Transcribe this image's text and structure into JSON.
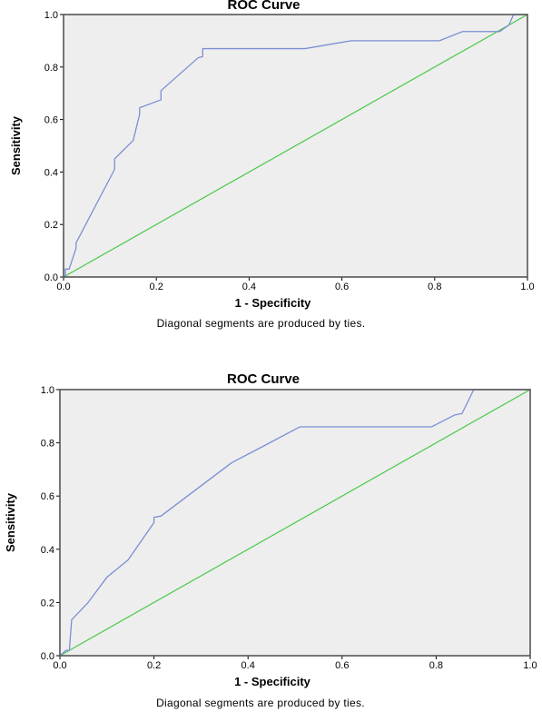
{
  "chart_data": [
    {
      "type": "line",
      "title": "ROC Curve",
      "xlabel": "1 - Specificity",
      "ylabel": "Sensitivity",
      "footnote": "Diagonal segments are produced by ties.",
      "xlim": [
        0,
        1
      ],
      "ylim": [
        0,
        1
      ],
      "x_ticks": [
        "0.0",
        "0.2",
        "0.4",
        "0.6",
        "0.8",
        "1.0"
      ],
      "y_ticks": [
        "0.0",
        "0.2",
        "0.4",
        "0.6",
        "0.8",
        "1.0"
      ],
      "grid": false,
      "roc_color": "#7b8fd4",
      "reference_color": "#47c947",
      "background": "#eeeeee",
      "series": [
        {
          "values": [
            [
              0,
              0
            ],
            [
              0.004,
              0
            ],
            [
              0.004,
              0.03
            ],
            [
              0.012,
              0.03
            ],
            [
              0.027,
              0.11
            ],
            [
              0.027,
              0.13
            ],
            [
              0.11,
              0.41
            ],
            [
              0.11,
              0.45
            ],
            [
              0.15,
              0.52
            ],
            [
              0.164,
              0.62
            ],
            [
              0.164,
              0.645
            ],
            [
              0.21,
              0.675
            ],
            [
              0.21,
              0.71
            ],
            [
              0.29,
              0.835
            ],
            [
              0.3,
              0.84
            ],
            [
              0.3,
              0.87
            ],
            [
              0.52,
              0.87
            ],
            [
              0.62,
              0.9
            ],
            [
              0.81,
              0.9
            ],
            [
              0.86,
              0.935
            ],
            [
              0.94,
              0.935
            ],
            [
              0.96,
              0.96
            ],
            [
              0.97,
              1.0
            ],
            [
              1.0,
              1.0
            ]
          ]
        },
        {
          "values": [
            [
              0,
              0
            ],
            [
              1,
              1
            ]
          ]
        }
      ]
    },
    {
      "type": "line",
      "title": "ROC Curve",
      "xlabel": "1 - Specificity",
      "ylabel": "Sensitivity",
      "footnote": "Diagonal segments are produced by ties.",
      "xlim": [
        0,
        1
      ],
      "ylim": [
        0,
        1
      ],
      "x_ticks": [
        "0.0",
        "0.2",
        "0.4",
        "0.6",
        "0.8",
        "1.0"
      ],
      "y_ticks": [
        "0.0",
        "0.2",
        "0.4",
        "0.6",
        "0.8",
        "1.0"
      ],
      "grid": false,
      "roc_color": "#7b8fd4",
      "reference_color": "#47c947",
      "background": "#eeeeee",
      "series": [
        {
          "values": [
            [
              0,
              0
            ],
            [
              0.013,
              0.02
            ],
            [
              0.02,
              0.02
            ],
            [
              0.025,
              0.135
            ],
            [
              0.06,
              0.2
            ],
            [
              0.1,
              0.295
            ],
            [
              0.145,
              0.36
            ],
            [
              0.2,
              0.5
            ],
            [
              0.2,
              0.52
            ],
            [
              0.215,
              0.525
            ],
            [
              0.365,
              0.725
            ],
            [
              0.43,
              0.785
            ],
            [
              0.51,
              0.86
            ],
            [
              0.79,
              0.86
            ],
            [
              0.84,
              0.905
            ],
            [
              0.855,
              0.91
            ],
            [
              0.88,
              1.0
            ],
            [
              1.0,
              1.0
            ]
          ]
        },
        {
          "values": [
            [
              0,
              0
            ],
            [
              1,
              1
            ]
          ]
        }
      ]
    }
  ]
}
